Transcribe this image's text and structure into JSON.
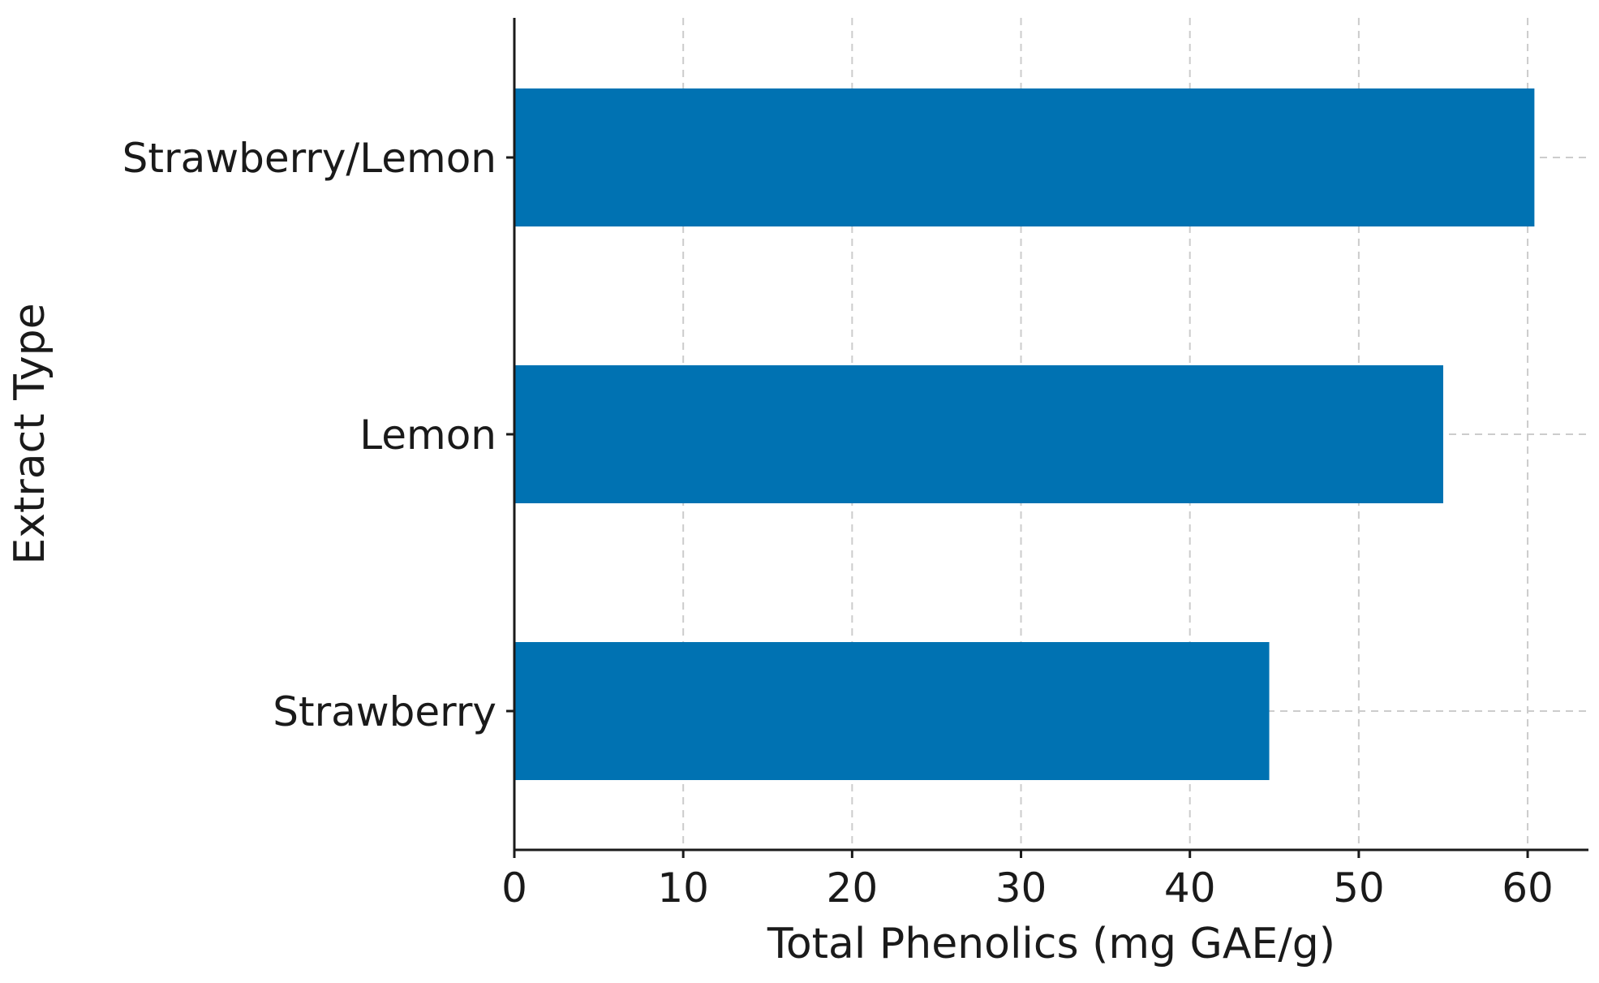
{
  "chart_data": {
    "type": "bar",
    "orientation": "horizontal",
    "title": "",
    "xlabel": "Total Phenolics (mg GAE/g)",
    "ylabel": "Extract Type",
    "categories": [
      "Strawberry",
      "Lemon",
      "Strawberry/Lemon"
    ],
    "values": [
      44.7,
      55.0,
      60.4
    ],
    "xlim": [
      0,
      63.6
    ],
    "xticks": [
      0,
      10,
      20,
      30,
      40,
      50,
      60
    ],
    "grid": true,
    "legend": "none",
    "bar_color": "#0072b2",
    "grid_color": "#cccccc",
    "axis_color": "#1a1a1a"
  }
}
